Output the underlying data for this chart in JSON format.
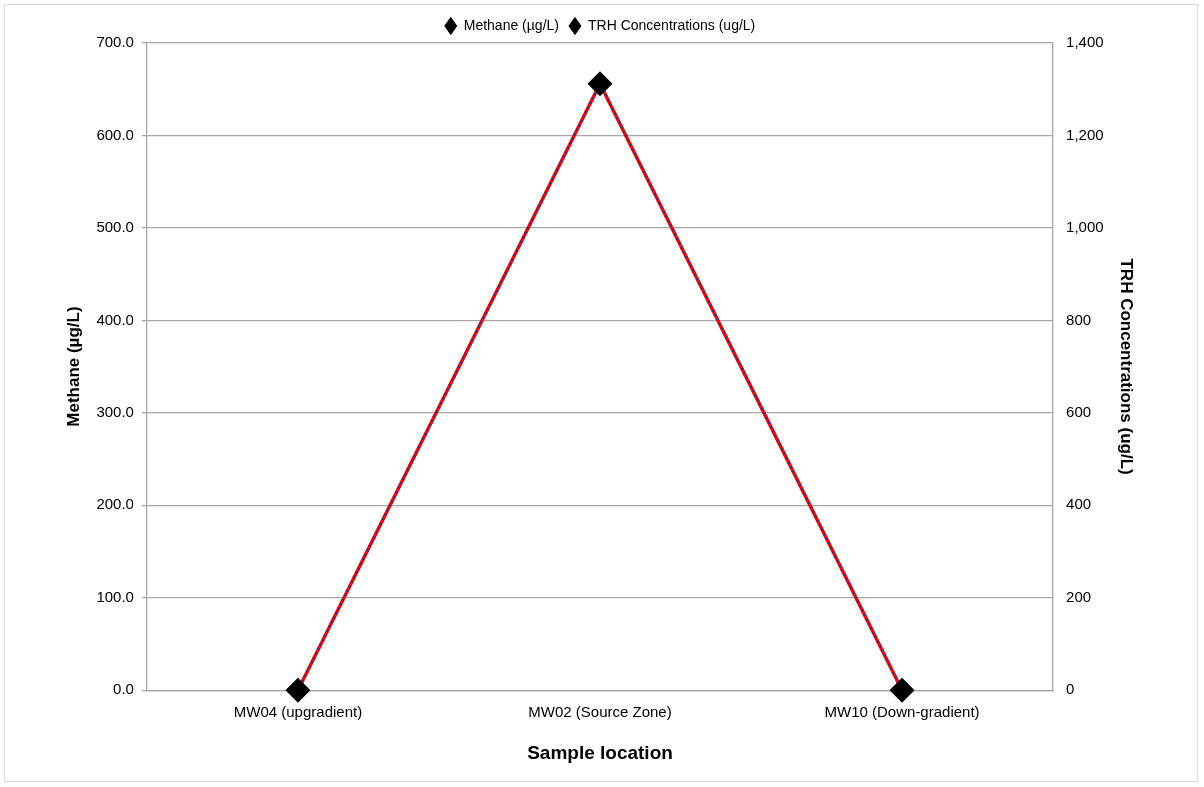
{
  "chart_data": {
    "type": "line",
    "xlabel": "Sample location",
    "ylabel": "Methane (µg/L)",
    "y2label": "TRH Concentrations (ug/L)",
    "categories": [
      "MW04 (upgradient)",
      "MW02 (Source Zone)",
      "MW10 (Down-gradient)"
    ],
    "series": [
      {
        "name": "Methane (µg/L)",
        "color": "#ff0000",
        "values": [
          0,
          656,
          0
        ],
        "line_style": "solid"
      },
      {
        "name": "TRH Concentrations (ug/L)",
        "color": "#1f3f7f",
        "values": [
          0,
          1312,
          0
        ],
        "axis": "y2",
        "line_style": "dotted"
      }
    ],
    "ylim": [
      0,
      700
    ],
    "yticks": [
      {
        "value": 0,
        "label": "0.0"
      },
      {
        "value": 100,
        "label": "100.0"
      },
      {
        "value": 200,
        "label": "200.0"
      },
      {
        "value": 300,
        "label": "300.0"
      },
      {
        "value": 400,
        "label": "400.0"
      },
      {
        "value": 500,
        "label": "500.0"
      },
      {
        "value": 600,
        "label": "600.0"
      },
      {
        "value": 700,
        "label": "700.0"
      }
    ],
    "y2lim": [
      0,
      1400
    ],
    "y2ticks": [
      0,
      200,
      400,
      600,
      800,
      {
        "value": 1000,
        "label": "1,000"
      },
      {
        "value": 1200,
        "label": "1,200"
      },
      {
        "value": 1400,
        "label": "1,400"
      }
    ],
    "grid": "y",
    "legend": "top",
    "marker": "diamond"
  }
}
